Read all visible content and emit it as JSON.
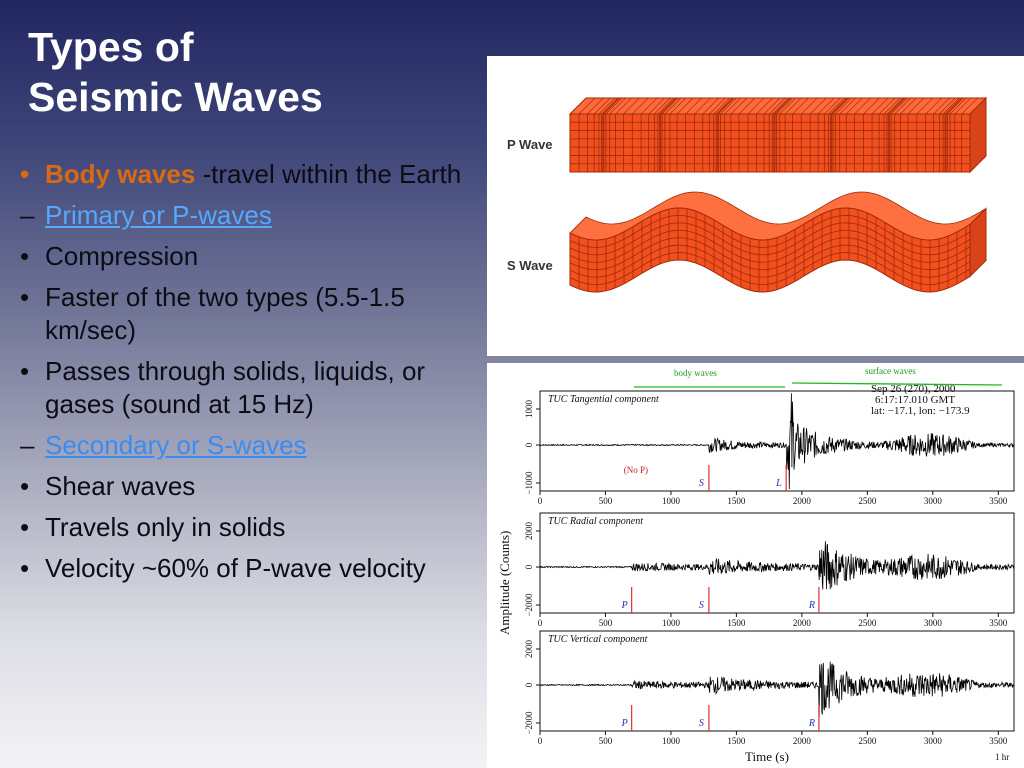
{
  "title": {
    "line1": "Types of",
    "line2": "Seismic Waves"
  },
  "bullets": [
    {
      "level": 0,
      "marker": "•",
      "highlight": "Body waves",
      "text": " -travel within the Earth"
    },
    {
      "level": 1,
      "marker": "–",
      "link": "Primary or P-waves"
    },
    {
      "level": 0,
      "marker": "•",
      "text": "Compression"
    },
    {
      "level": 0,
      "marker": "•",
      "text": "Faster of the two types (5.5-1.5 km/sec)"
    },
    {
      "level": 0,
      "marker": "•",
      "text": "Passes through solids, liquids, or gases (sound at 15 Hz)"
    },
    {
      "level": 1,
      "marker": "–",
      "link": "Secondary or S-waves"
    },
    {
      "level": 0,
      "marker": "•",
      "text": "Shear waves"
    },
    {
      "level": 0,
      "marker": "•",
      "text": "Travels only in solids"
    },
    {
      "level": 0,
      "marker": "•",
      "text": "Velocity ~60% of P-wave velocity"
    }
  ],
  "wave_figure": {
    "p_label": "P Wave",
    "s_label": "S Wave",
    "block_color": "#f2501e",
    "grid_color": "#a02a0a"
  },
  "seismogram": {
    "body_waves_label": "body waves",
    "surface_waves_label": "surface waves",
    "event_info": [
      "Sep 26 (270), 2000",
      "6:17:17.010 GMT",
      "lat: −17.1, lon: −173.9"
    ],
    "y_axis_label": "Amplitude (Counts)",
    "x_axis_label": "Time (s)",
    "scale_note": "1 hr",
    "x_ticks": [
      "0",
      "500",
      "1000",
      "1500",
      "2000",
      "2500",
      "3000",
      "3500"
    ],
    "panels": [
      {
        "name": "TUC Tangential component",
        "y_ticks": [
          "1000",
          "0",
          "−1000"
        ],
        "note": "(No P)",
        "picks": [
          "S",
          "L"
        ]
      },
      {
        "name": "TUC Radial component",
        "y_ticks": [
          "2000",
          "0",
          "−2000"
        ],
        "picks": [
          "P",
          "S",
          "R"
        ]
      },
      {
        "name": "TUC Vertical component",
        "y_ticks": [
          "2000",
          "0",
          "−2000"
        ],
        "picks": [
          "P",
          "S",
          "R"
        ]
      }
    ]
  }
}
